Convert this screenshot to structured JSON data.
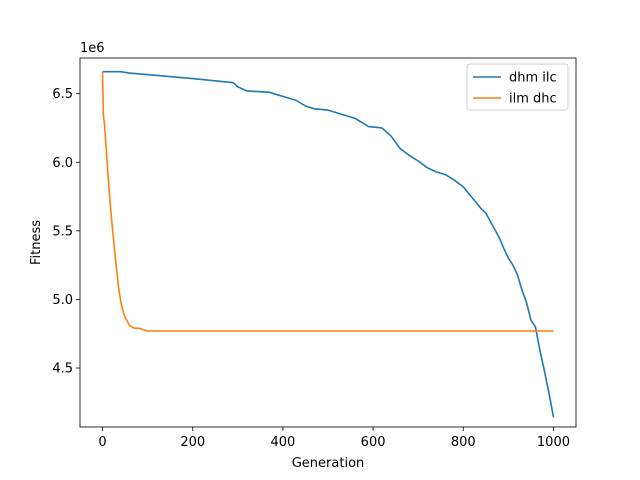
{
  "chart_data": {
    "type": "line",
    "title": "",
    "xlabel": "Generation",
    "ylabel": "Fitness",
    "y_scale_label": "1e6",
    "xlim": [
      -50,
      1050
    ],
    "ylim": [
      4.07,
      6.76
    ],
    "xticks": [
      0,
      200,
      400,
      600,
      800,
      1000
    ],
    "xtick_labels": [
      "0",
      "200",
      "400",
      "600",
      "800",
      "1000"
    ],
    "yticks": [
      4.5,
      5.0,
      5.5,
      6.0,
      6.5
    ],
    "ytick_labels": [
      "4.5",
      "5.0",
      "5.5",
      "6.0",
      "6.5"
    ],
    "grid": false,
    "legend_position": "top-right",
    "series": [
      {
        "name": "dhm ilc",
        "color": "#1f77b4",
        "x": [
          0,
          40,
          60,
          130,
          200,
          290,
          300,
          320,
          370,
          380,
          400,
          430,
          450,
          470,
          500,
          520,
          540,
          560,
          580,
          590,
          620,
          640,
          660,
          680,
          700,
          720,
          740,
          760,
          780,
          800,
          820,
          840,
          850,
          860,
          870,
          880,
          890,
          900,
          910,
          920,
          930,
          940,
          950,
          960,
          970,
          980,
          990,
          1000
        ],
        "y": [
          6.66,
          6.66,
          6.65,
          6.63,
          6.61,
          6.58,
          6.55,
          6.52,
          6.51,
          6.5,
          6.48,
          6.45,
          6.41,
          6.39,
          6.38,
          6.36,
          6.34,
          6.32,
          6.28,
          6.26,
          6.25,
          6.19,
          6.1,
          6.05,
          6.01,
          5.96,
          5.93,
          5.91,
          5.87,
          5.82,
          5.74,
          5.66,
          5.63,
          5.57,
          5.51,
          5.45,
          5.37,
          5.3,
          5.25,
          5.18,
          5.07,
          4.98,
          4.85,
          4.8,
          4.63,
          4.48,
          4.32,
          4.14
        ]
      },
      {
        "name": "ilm dhc",
        "color": "#ff7f0e",
        "x": [
          0,
          2,
          5,
          10,
          15,
          20,
          25,
          30,
          35,
          40,
          45,
          50,
          55,
          60,
          70,
          80,
          90,
          100,
          110,
          150,
          300,
          500,
          700,
          900,
          1000
        ],
        "y": [
          6.66,
          6.35,
          6.25,
          6.0,
          5.78,
          5.58,
          5.42,
          5.25,
          5.1,
          4.99,
          4.92,
          4.87,
          4.84,
          4.81,
          4.79,
          4.79,
          4.78,
          4.77,
          4.77,
          4.77,
          4.77,
          4.77,
          4.77,
          4.77,
          4.77
        ]
      }
    ]
  }
}
